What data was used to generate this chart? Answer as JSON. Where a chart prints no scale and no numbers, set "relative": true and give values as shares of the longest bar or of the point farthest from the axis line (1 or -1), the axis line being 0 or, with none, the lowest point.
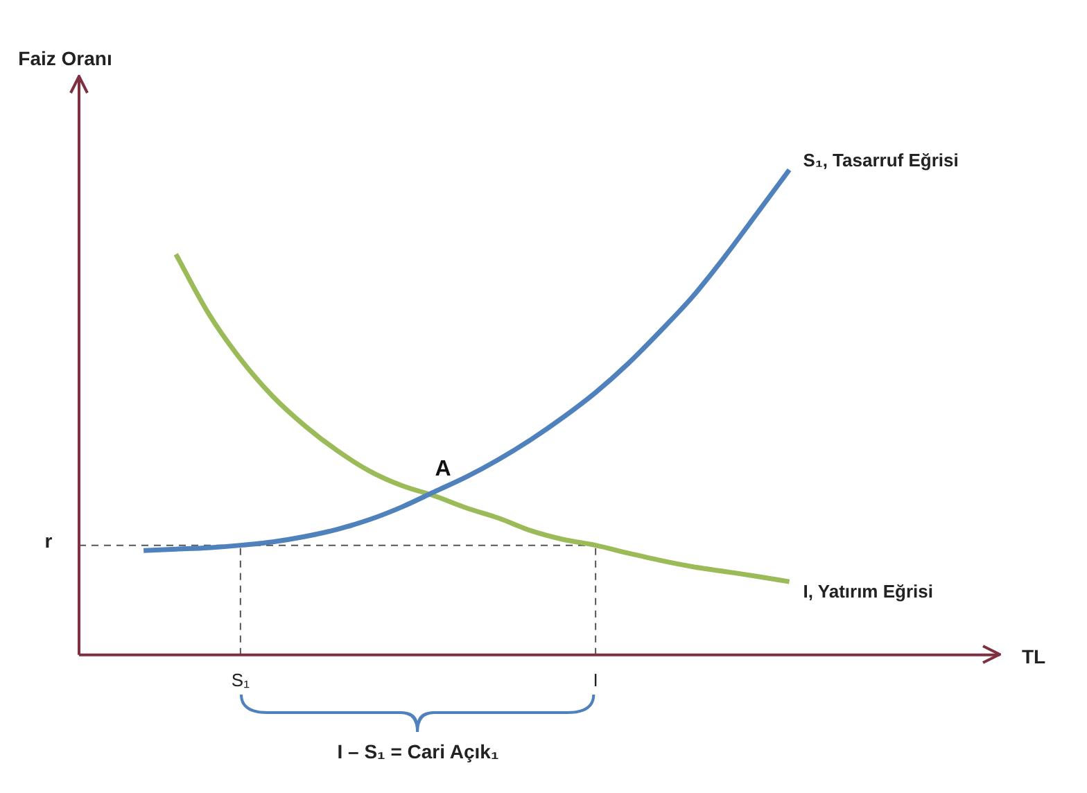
{
  "chart_data": {
    "type": "line",
    "relative": true,
    "xlabel": "TL",
    "categories": [
      null,
      null,
      null,
      null,
      null,
      "S₁",
      null,
      null,
      null,
      null,
      null,
      null,
      null,
      null,
      null,
      null,
      "I",
      null,
      null,
      null,
      null,
      null,
      null,
      null,
      null,
      null,
      null,
      null,
      null
    ],
    "series": [
      {
        "name": "S₁, Tasarruf Eğrisi",
        "color": "#4f81bd",
        "values": [
          null,
          null,
          0.215,
          0.218,
          0.221,
          0.226,
          0.233,
          0.244,
          0.259,
          0.279,
          0.305,
          0.336,
          0.367,
          0.403,
          0.444,
          0.49,
          0.541,
          0.6,
          0.667,
          0.738,
          0.821,
          0.91,
          1,
          null,
          null,
          null,
          null,
          null,
          null
        ]
      },
      {
        "name": "I, Yatırım Eğrisi",
        "color": "#9bbb59",
        "values": [
          null,
          null,
          null,
          0.826,
          0.705,
          0.61,
          0.533,
          0.472,
          0.421,
          0.379,
          0.349,
          0.328,
          0.303,
          0.282,
          0.256,
          0.238,
          0.226,
          0.21,
          0.195,
          0.182,
          0.172,
          0.162,
          0.151,
          null,
          null,
          null,
          null,
          null,
          null
        ]
      }
    ],
    "ref_lines": [
      {
        "axis": "y",
        "value": 0.226,
        "label": "r",
        "line_style": "dashed"
      },
      {
        "axis": "x",
        "value": "S₁",
        "line_style": "dashed"
      },
      {
        "axis": "x",
        "value": "I",
        "line_style": "dashed"
      }
    ],
    "annotations": [
      "A",
      "I – S₁ = Cari Açık₁",
      "Faiz Oranı"
    ],
    "legend": false,
    "grid": false,
    "marker": "none",
    "line_style": "solid"
  }
}
